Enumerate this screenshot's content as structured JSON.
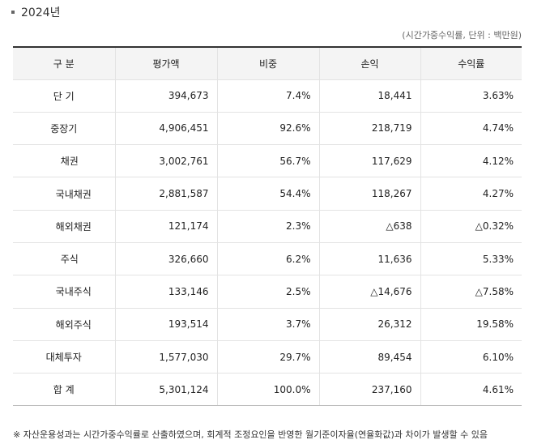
{
  "heading": "2024년",
  "unit_note": "(시간가중수익률, 단위 : 백만원)",
  "table": {
    "headers": [
      "구 분",
      "평가액",
      "비중",
      "손익",
      "수익률"
    ],
    "rows": [
      {
        "cat": "단 기",
        "value": "394,673",
        "share": "7.4%",
        "pnl": "18,441",
        "ret": "3.63%"
      },
      {
        "cat": "중장기",
        "value": "4,906,451",
        "share": "92.6%",
        "pnl": "218,719",
        "ret": "4.74%"
      },
      {
        "cat": "채권",
        "value": "3,002,761",
        "share": "56.7%",
        "pnl": "117,629",
        "ret": "4.12%"
      },
      {
        "cat": "국내채권",
        "value": "2,881,587",
        "share": "54.4%",
        "pnl": "118,267",
        "ret": "4.27%"
      },
      {
        "cat": "해외채권",
        "value": "121,174",
        "share": "2.3%",
        "pnl": "△638",
        "ret": "△0.32%"
      },
      {
        "cat": "주식",
        "value": "326,660",
        "share": "6.2%",
        "pnl": "11,636",
        "ret": "5.33%"
      },
      {
        "cat": "국내주식",
        "value": "133,146",
        "share": "2.5%",
        "pnl": "△14,676",
        "ret": "△7.58%"
      },
      {
        "cat": "해외주식",
        "value": "193,514",
        "share": "3.7%",
        "pnl": "26,312",
        "ret": "19.58%"
      },
      {
        "cat": "대체투자",
        "value": "1,577,030",
        "share": "29.7%",
        "pnl": "89,454",
        "ret": "6.10%"
      },
      {
        "cat": "합 계",
        "value": "5,301,124",
        "share": "100.0%",
        "pnl": "237,160",
        "ret": "4.61%"
      }
    ]
  },
  "footnote": "※ 자산운용성과는 시간가중수익률로 산출하였으며, 회계적 조정요인을 반영한 월기준이자율(연율화값)과 차이가 발생할 수 있음"
}
